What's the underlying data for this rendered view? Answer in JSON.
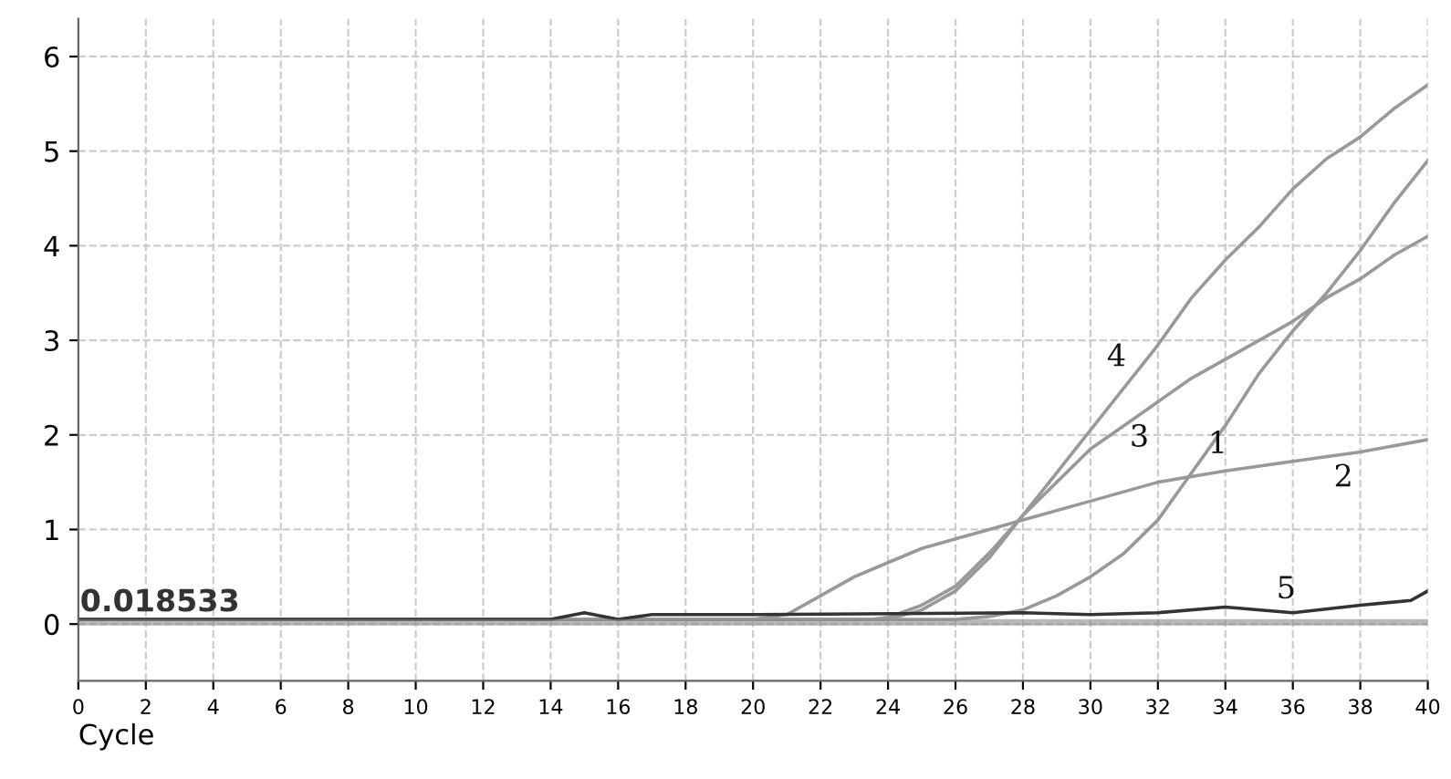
{
  "chart_data": {
    "type": "line",
    "xlabel": "Cycle",
    "xlim": [
      0,
      40
    ],
    "ylim": [
      -0.6,
      6.4
    ],
    "xticks": [
      0,
      2,
      4,
      6,
      8,
      10,
      12,
      14,
      16,
      18,
      20,
      22,
      24,
      26,
      28,
      30,
      32,
      34,
      36,
      38,
      40
    ],
    "yticks": [
      0,
      1,
      2,
      3,
      4,
      5,
      6
    ],
    "grid": true,
    "legend": false,
    "marker": "none",
    "line_style": "solid",
    "series": [
      {
        "name": "4",
        "color": "#999999",
        "x": [
          0,
          24,
          25,
          26,
          27,
          28,
          29,
          30,
          31,
          32,
          33,
          34,
          35,
          36,
          37,
          38,
          39,
          40
        ],
        "values": [
          0.05,
          0.05,
          0.15,
          0.35,
          0.7,
          1.15,
          1.6,
          2.05,
          2.5,
          2.95,
          3.45,
          3.85,
          4.2,
          4.6,
          4.92,
          5.15,
          5.45,
          5.7
        ]
      },
      {
        "name": "3",
        "color": "#999999",
        "x": [
          0,
          23.5,
          24,
          25,
          26,
          27,
          28,
          29,
          30,
          31,
          32,
          33,
          34,
          35,
          36,
          37,
          38,
          39,
          40
        ],
        "values": [
          0.05,
          0.05,
          0.07,
          0.2,
          0.4,
          0.75,
          1.15,
          1.5,
          1.85,
          2.1,
          2.35,
          2.6,
          2.8,
          3.0,
          3.2,
          3.45,
          3.65,
          3.9,
          4.1
        ]
      },
      {
        "name": "2",
        "color": "#999999",
        "x": [
          0,
          20,
          21,
          22,
          23,
          24,
          25,
          26,
          27,
          28,
          30,
          32,
          34,
          36,
          38,
          40
        ],
        "values": [
          0.05,
          0.05,
          0.1,
          0.3,
          0.5,
          0.65,
          0.8,
          0.9,
          1.0,
          1.1,
          1.3,
          1.5,
          1.62,
          1.72,
          1.82,
          1.95
        ]
      },
      {
        "name": "1",
        "color": "#999999",
        "x": [
          0,
          26,
          27,
          28,
          29,
          30,
          31,
          32,
          33,
          34,
          35,
          36,
          37,
          38,
          39,
          40
        ],
        "values": [
          0.05,
          0.05,
          0.08,
          0.15,
          0.3,
          0.5,
          0.75,
          1.1,
          1.6,
          2.1,
          2.65,
          3.1,
          3.5,
          3.95,
          4.45,
          4.9
        ]
      },
      {
        "name": "5",
        "color": "#333333",
        "x": [
          0,
          14,
          15,
          16,
          17,
          20,
          28,
          30,
          32,
          34,
          36,
          38,
          39.5,
          40
        ],
        "values": [
          0.05,
          0.05,
          0.12,
          0.05,
          0.1,
          0.1,
          0.12,
          0.1,
          0.12,
          0.18,
          0.12,
          0.2,
          0.25,
          0.35
        ]
      }
    ],
    "ref_lines": [
      {
        "axis": "y",
        "value": 0.018533,
        "label": "0.018533",
        "color": "#888888"
      }
    ]
  }
}
